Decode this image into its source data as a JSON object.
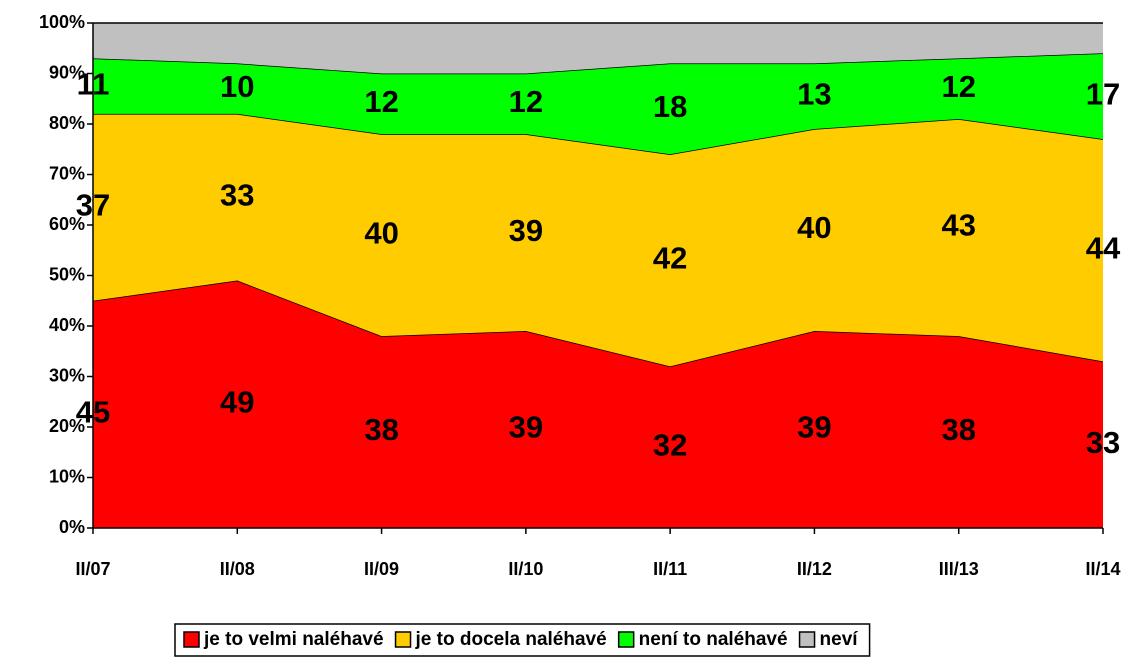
{
  "chart_data": {
    "type": "stacked_area",
    "categories": [
      "II/07",
      "II/08",
      "II/09",
      "II/10",
      "II/11",
      "II/12",
      "III/13",
      "II/14"
    ],
    "series": [
      {
        "name": "je to velmi naléhavé",
        "color": "#ff0000",
        "values": [
          45,
          49,
          38,
          39,
          32,
          39,
          38,
          33
        ],
        "data_labels": true
      },
      {
        "name": "je to docela naléhavé",
        "color": "#ffcc00",
        "values": [
          37,
          33,
          40,
          39,
          42,
          40,
          43,
          44
        ],
        "data_labels": true
      },
      {
        "name": "není to naléhavé",
        "color": "#00ff00",
        "values": [
          11,
          10,
          12,
          12,
          18,
          13,
          12,
          17
        ],
        "data_labels": true
      },
      {
        "name": "neví",
        "color": "#c0c0c0",
        "values": [
          7,
          8,
          10,
          10,
          8,
          8,
          7,
          6
        ],
        "data_labels": false
      }
    ],
    "ylim": [
      0,
      100
    ],
    "yticks": [
      {
        "value": 0,
        "label": "0%"
      },
      {
        "value": 10,
        "label": "10%"
      },
      {
        "value": 20,
        "label": "20%"
      },
      {
        "value": 30,
        "label": "30%"
      },
      {
        "value": 40,
        "label": "40%"
      },
      {
        "value": 50,
        "label": "50%"
      },
      {
        "value": 60,
        "label": "60%"
      },
      {
        "value": 70,
        "label": "70%"
      },
      {
        "value": 80,
        "label": "80%"
      },
      {
        "value": 90,
        "label": "90%"
      },
      {
        "value": 100,
        "label": "100%"
      }
    ],
    "grid": false,
    "legend": "bottom"
  }
}
